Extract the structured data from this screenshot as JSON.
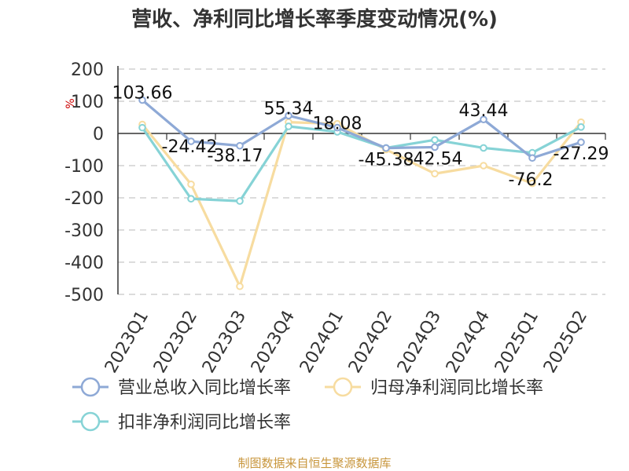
{
  "chart_data": {
    "type": "line",
    "title": "营收、净利同比增长率季度变动情况(%)",
    "ylabel": "%",
    "ylim": [
      -500,
      200
    ],
    "yticks": [
      200,
      100,
      0,
      -100,
      -200,
      -300,
      -400,
      -500
    ],
    "grid": true,
    "legend_position": "bottom",
    "categories": [
      "2023Q1",
      "2023Q2",
      "2023Q3",
      "2023Q4",
      "2024Q1",
      "2024Q2",
      "2024Q3",
      "2024Q4",
      "2025Q1",
      "2025Q2"
    ],
    "series": [
      {
        "name": "营业总收入同比增长率",
        "color": "#8ea9d6",
        "values": [
          103.66,
          -24.42,
          -38.17,
          55.34,
          18.08,
          -45.38,
          -42.54,
          43.44,
          -76.2,
          -27.29
        ],
        "labels": [
          "103.66",
          "-24.42",
          "-38.17",
          "55.34",
          "18.08",
          "-45.38",
          "-42.54",
          "43.44",
          "-76.2",
          "-27.29"
        ]
      },
      {
        "name": "归母净利润同比增长率",
        "color": "#f7dca0",
        "values": [
          28,
          -158,
          -475,
          35,
          30,
          -50,
          -125,
          -100,
          -155,
          35
        ]
      },
      {
        "name": "扣非净利润同比增长率",
        "color": "#86d3d6",
        "values": [
          18,
          -203,
          -210,
          22,
          5,
          -45,
          -20,
          -45,
          -60,
          20
        ]
      }
    ]
  },
  "source": "制图数据来自恒生聚源数据库"
}
